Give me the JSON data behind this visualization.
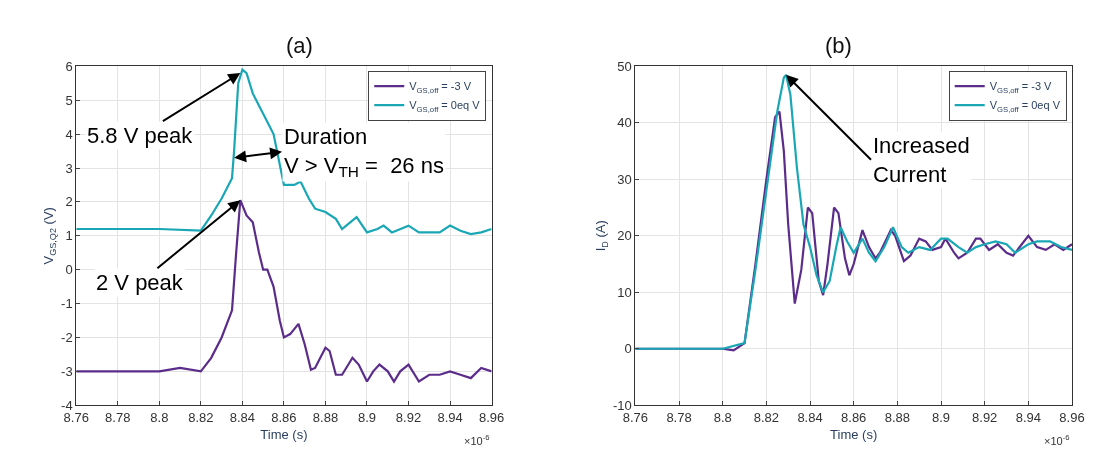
{
  "chart_data": [
    {
      "type": "line",
      "title": "(a)",
      "xlabel": "Time (s)",
      "ylabel": "V$_{GS,Q2}$ (V)",
      "xlim": [
        8.76,
        8.96
      ],
      "xticks": [
        8.76,
        8.78,
        8.8,
        8.82,
        8.84,
        8.86,
        8.88,
        8.9,
        8.92,
        8.94,
        8.96
      ],
      "ylim": [
        -4,
        6
      ],
      "yticks": [
        -4,
        -3,
        -2,
        -1,
        0,
        1,
        2,
        3,
        4,
        5,
        6
      ],
      "grid": true,
      "legend": "top right",
      "annotations": [
        {
          "text": "5.8 V peak",
          "x": 8.839,
          "y": 5.8
        },
        {
          "text": "Duration\nV > V$_{TH}$ =  26 ns",
          "x": 8.836,
          "y": 3.3
        },
        {
          "text": "2 V peak",
          "x": 8.839,
          "y": 2.05
        },
        "×10$^{-6}$"
      ],
      "series": [
        {
          "name": "V$_{GS,off}$ = -3 V",
          "color": "#5b2c8a",
          "x": [
            8.76,
            8.78,
            8.8,
            8.81,
            8.82,
            8.825,
            8.83,
            8.835,
            8.837,
            8.839,
            8.842,
            8.845,
            8.848,
            8.85,
            8.852,
            8.855,
            8.858,
            8.86,
            8.863,
            8.867,
            8.87,
            8.873,
            8.875,
            8.88,
            8.882,
            8.885,
            8.888,
            8.89,
            8.893,
            8.896,
            8.9,
            8.903,
            8.906,
            8.91,
            8.913,
            8.916,
            8.92,
            8.925,
            8.93,
            8.935,
            8.94,
            8.945,
            8.95,
            8.955,
            8.96
          ],
          "values": [
            -3,
            -3,
            -3,
            -2.9,
            -3,
            -2.6,
            -2.0,
            -1.2,
            0.5,
            2.05,
            1.6,
            1.4,
            0.5,
            0.0,
            0.0,
            -0.5,
            -1.5,
            -2.0,
            -1.9,
            -1.6,
            -2.2,
            -2.95,
            -2.9,
            -2.3,
            -2.4,
            -3.1,
            -3.1,
            -2.9,
            -2.6,
            -2.8,
            -3.3,
            -3.0,
            -2.8,
            -3.0,
            -3.3,
            -3.0,
            -2.8,
            -3.3,
            -3.1,
            -3.1,
            -3.0,
            -3.1,
            -3.2,
            -2.9,
            -3.0
          ]
        },
        {
          "name": "V$_{GS,off}$ = 0eq V",
          "color": "#1aa7b5",
          "x": [
            8.76,
            8.78,
            8.8,
            8.82,
            8.825,
            8.83,
            8.835,
            8.836,
            8.838,
            8.84,
            8.842,
            8.845,
            8.85,
            8.855,
            8.86,
            8.865,
            8.868,
            8.872,
            8.875,
            8.88,
            8.885,
            8.888,
            8.89,
            8.895,
            8.9,
            8.905,
            8.908,
            8.912,
            8.92,
            8.925,
            8.93,
            8.935,
            8.94,
            8.945,
            8.95,
            8.955,
            8.96
          ],
          "values": [
            1.2,
            1.2,
            1.2,
            1.15,
            1.6,
            2.1,
            2.7,
            3.5,
            5.5,
            5.9,
            5.8,
            5.2,
            4.6,
            4.0,
            2.5,
            2.5,
            2.6,
            2.1,
            1.8,
            1.7,
            1.5,
            1.2,
            1.3,
            1.55,
            1.1,
            1.2,
            1.3,
            1.1,
            1.3,
            1.1,
            1.1,
            1.1,
            1.3,
            1.15,
            1.05,
            1.1,
            1.2
          ]
        }
      ]
    },
    {
      "type": "line",
      "title": "(b)",
      "xlabel": "Time (s)",
      "ylabel": "I$_{D}$ (A)",
      "xlim": [
        8.76,
        8.96
      ],
      "xticks": [
        8.76,
        8.78,
        8.8,
        8.82,
        8.84,
        8.86,
        8.88,
        8.9,
        8.92,
        8.94,
        8.96
      ],
      "ylim": [
        -10,
        50
      ],
      "yticks": [
        -10,
        0,
        10,
        20,
        30,
        40,
        50
      ],
      "grid": true,
      "legend": "top right",
      "annotations": [
        {
          "text": "Increased\nCurrent",
          "x": 8.829,
          "y": 48.5
        },
        "×10$^{-6}$"
      ],
      "series": [
        {
          "name": "V$_{GS,off}$ = -3 V",
          "color": "#5b2c8a",
          "x": [
            8.76,
            8.78,
            8.8,
            8.805,
            8.81,
            8.815,
            8.82,
            8.824,
            8.826,
            8.828,
            8.83,
            8.833,
            8.836,
            8.839,
            8.841,
            8.844,
            8.846,
            8.848,
            8.851,
            8.853,
            8.856,
            8.858,
            8.86,
            8.864,
            8.867,
            8.87,
            8.872,
            8.877,
            8.879,
            8.883,
            8.886,
            8.89,
            8.893,
            8.896,
            8.9,
            8.902,
            8.906,
            8.908,
            8.912,
            8.916,
            8.918,
            8.922,
            8.926,
            8.93,
            8.933,
            8.937,
            8.94,
            8.944,
            8.948,
            8.952,
            8.956,
            8.96
          ],
          "values": [
            0,
            0,
            0,
            -0.3,
            1,
            15,
            30,
            41,
            42,
            35,
            22,
            8,
            14,
            25,
            24,
            12,
            9.5,
            15,
            25,
            24,
            16,
            13,
            15,
            21,
            18,
            16,
            17,
            21,
            20,
            15.5,
            16.5,
            19.5,
            19,
            17.5,
            18,
            19.5,
            17,
            16,
            17,
            19.5,
            19.5,
            17.5,
            18.5,
            17,
            16.5,
            18.5,
            20,
            18,
            17.5,
            18.5,
            17.5,
            18.5
          ]
        },
        {
          "name": "V$_{GS,off}$ = 0eq V",
          "color": "#1aa7b5",
          "x": [
            8.76,
            8.78,
            8.8,
            8.81,
            8.815,
            8.82,
            8.825,
            8.828,
            8.829,
            8.831,
            8.834,
            8.837,
            8.84,
            8.843,
            8.846,
            8.849,
            8.852,
            8.854,
            8.857,
            8.86,
            8.864,
            8.867,
            8.87,
            8.874,
            8.878,
            8.882,
            8.885,
            8.89,
            8.895,
            8.9,
            8.903,
            8.908,
            8.912,
            8.916,
            8.92,
            8.925,
            8.93,
            8.934,
            8.94,
            8.944,
            8.95,
            8.955,
            8.96
          ],
          "values": [
            0,
            0,
            0,
            1,
            14,
            28,
            42,
            48,
            48.5,
            45,
            32,
            22,
            18,
            13,
            10,
            12,
            18,
            21.5,
            19,
            17,
            19.5,
            17,
            15.5,
            18,
            21.5,
            18,
            17,
            18,
            17.5,
            19.5,
            19.5,
            18,
            17,
            18,
            18.5,
            19,
            18.5,
            17,
            18.5,
            19,
            19,
            18,
            17.5
          ]
        }
      ]
    }
  ]
}
